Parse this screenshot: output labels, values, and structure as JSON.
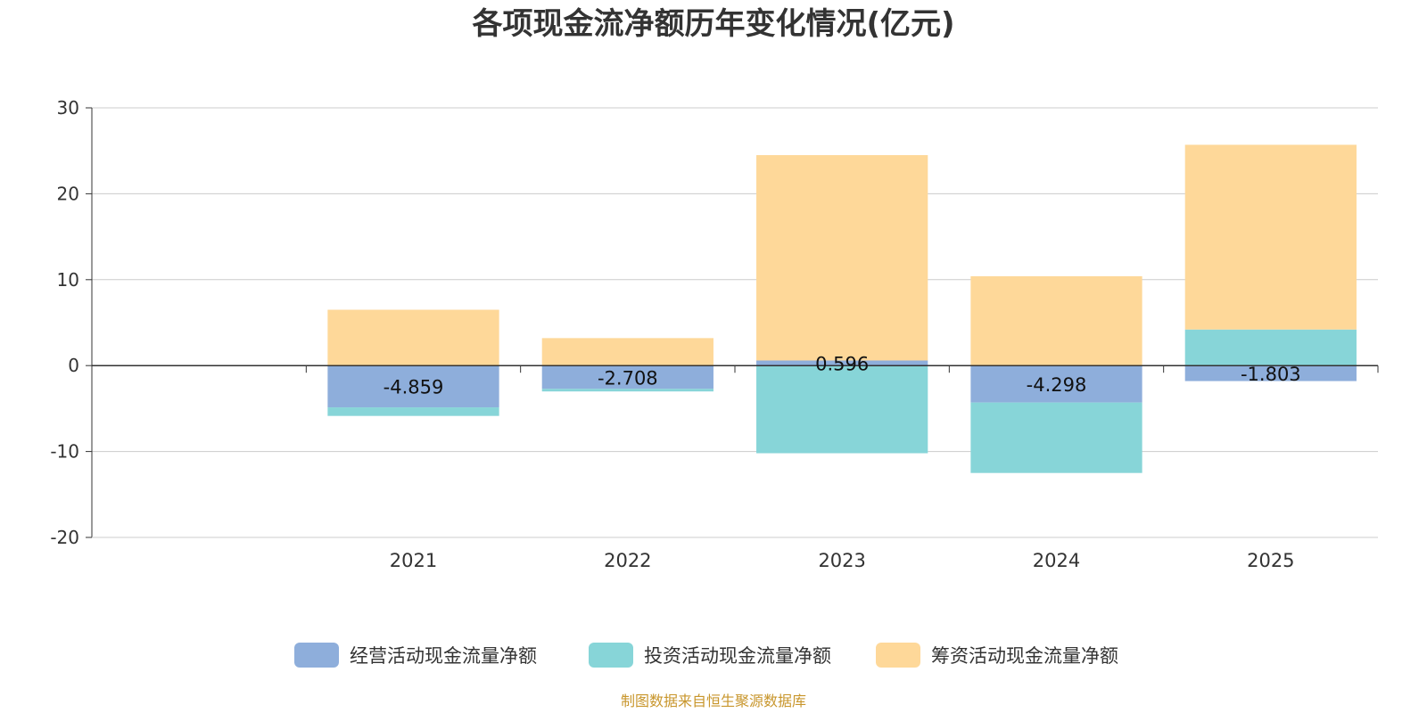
{
  "chart_data": {
    "type": "bar",
    "stacked": true,
    "title": "各项现金流净额历年变化情况(亿元)",
    "categories": [
      "2021",
      "2022",
      "2023",
      "2024",
      "2025"
    ],
    "ylim": [
      -20,
      30
    ],
    "yticks": [
      30,
      20,
      10,
      0,
      -10,
      -20
    ],
    "grid": true,
    "legend_position": "bottom",
    "series": [
      {
        "name": "经营活动现金流量净额",
        "color": "#8eaedb",
        "values": [
          -4.859,
          -2.708,
          0.596,
          -4.298,
          -1.803
        ],
        "labels": [
          "-4.859",
          "-2.708",
          "0.596",
          "-4.298",
          "-1.803"
        ]
      },
      {
        "name": "投资活动现金流量净额",
        "color": "#87d5d8",
        "values": [
          -1.0,
          -0.3,
          -10.2,
          -8.2,
          4.2
        ]
      },
      {
        "name": "筹资活动现金流量净额",
        "color": "#fed899",
        "values": [
          6.5,
          3.2,
          23.9,
          10.4,
          21.5
        ]
      }
    ],
    "source": "制图数据来自恒生聚源数据库"
  }
}
